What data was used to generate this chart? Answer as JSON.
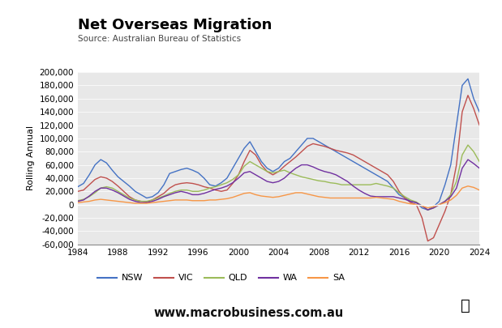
{
  "title": "Net Overseas Migration",
  "source": "Source: Australian Bureau of Statistics",
  "ylabel": "Rolling Annual",
  "website": "www.macrobusiness.com.au",
  "colors": {
    "NSW": "#4472C4",
    "VIC": "#C0504D",
    "QLD": "#9BBB59",
    "WA": "#7030A0",
    "SA": "#F79646"
  },
  "background_color": "#E8E8E8",
  "ylim": [
    -60000,
    200000
  ],
  "yticks": [
    -60000,
    -40000,
    -20000,
    0,
    20000,
    40000,
    60000,
    80000,
    100000,
    120000,
    140000,
    160000,
    180000,
    200000
  ],
  "xlim": [
    1984,
    2024
  ],
  "xticks": [
    1984,
    1988,
    1992,
    1996,
    2000,
    2004,
    2008,
    2012,
    2016,
    2020,
    2024
  ],
  "NSW": [
    27000,
    32000,
    45000,
    60000,
    68000,
    63000,
    52000,
    42000,
    35000,
    28000,
    20000,
    15000,
    10000,
    12000,
    18000,
    30000,
    47000,
    50000,
    53000,
    55000,
    52000,
    48000,
    40000,
    30000,
    28000,
    33000,
    40000,
    55000,
    70000,
    85000,
    95000,
    80000,
    65000,
    55000,
    50000,
    55000,
    65000,
    70000,
    80000,
    90000,
    100000,
    100000,
    95000,
    90000,
    85000,
    80000,
    75000,
    70000,
    65000,
    60000,
    55000,
    50000,
    45000,
    40000,
    35000,
    25000,
    15000,
    10000,
    5000,
    3000,
    -5000,
    -8000,
    -3000,
    5000,
    30000,
    60000,
    120000,
    180000,
    190000,
    160000,
    140000
  ],
  "VIC": [
    20000,
    22000,
    30000,
    38000,
    42000,
    40000,
    35000,
    28000,
    20000,
    12000,
    7000,
    5000,
    4000,
    7000,
    12000,
    17000,
    25000,
    30000,
    32000,
    33000,
    32000,
    30000,
    27000,
    25000,
    22000,
    20000,
    22000,
    32000,
    45000,
    65000,
    82000,
    75000,
    60000,
    50000,
    45000,
    50000,
    58000,
    65000,
    72000,
    80000,
    88000,
    92000,
    90000,
    88000,
    85000,
    82000,
    80000,
    78000,
    75000,
    70000,
    65000,
    60000,
    55000,
    50000,
    45000,
    35000,
    20000,
    10000,
    3000,
    0,
    -20000,
    -55000,
    -50000,
    -30000,
    -10000,
    15000,
    60000,
    140000,
    165000,
    145000,
    120000
  ],
  "QLD": [
    6000,
    8000,
    12000,
    18000,
    25000,
    27000,
    25000,
    20000,
    15000,
    10000,
    7000,
    5000,
    5000,
    7000,
    10000,
    13000,
    17000,
    20000,
    22000,
    22000,
    20000,
    20000,
    22000,
    25000,
    27000,
    30000,
    33000,
    38000,
    45000,
    58000,
    65000,
    60000,
    55000,
    50000,
    48000,
    50000,
    52000,
    48000,
    45000,
    42000,
    40000,
    38000,
    36000,
    35000,
    33000,
    32000,
    30000,
    30000,
    30000,
    30000,
    30000,
    30000,
    32000,
    30000,
    28000,
    25000,
    18000,
    12000,
    7000,
    4000,
    -2000,
    -8000,
    -5000,
    0,
    5000,
    15000,
    35000,
    75000,
    90000,
    80000,
    65000
  ],
  "WA": [
    5000,
    7000,
    13000,
    20000,
    25000,
    25000,
    22000,
    18000,
    13000,
    8000,
    5000,
    3000,
    3000,
    5000,
    8000,
    12000,
    15000,
    18000,
    20000,
    18000,
    15000,
    15000,
    17000,
    20000,
    23000,
    25000,
    28000,
    33000,
    40000,
    48000,
    50000,
    45000,
    40000,
    35000,
    33000,
    35000,
    40000,
    48000,
    55000,
    60000,
    60000,
    57000,
    53000,
    50000,
    48000,
    45000,
    40000,
    35000,
    28000,
    22000,
    17000,
    13000,
    12000,
    12000,
    12000,
    12000,
    10000,
    8000,
    5000,
    3000,
    -2000,
    -8000,
    -5000,
    0,
    5000,
    12000,
    25000,
    55000,
    68000,
    62000,
    55000
  ],
  "SA": [
    3000,
    4000,
    5000,
    7000,
    8000,
    7000,
    6000,
    5000,
    4000,
    3000,
    2000,
    2000,
    2000,
    3000,
    4000,
    5000,
    6000,
    7000,
    7000,
    7000,
    6000,
    6000,
    6000,
    7000,
    7000,
    8000,
    9000,
    11000,
    14000,
    17000,
    18000,
    15000,
    13000,
    12000,
    11000,
    12000,
    14000,
    16000,
    18000,
    18000,
    16000,
    14000,
    12000,
    11000,
    10000,
    10000,
    10000,
    10000,
    10000,
    10000,
    10000,
    10000,
    11000,
    10000,
    9000,
    8000,
    5000,
    3000,
    1000,
    0,
    -2000,
    -5000,
    -3000,
    0,
    3000,
    7000,
    14000,
    25000,
    28000,
    26000,
    22000
  ],
  "years_count": 71,
  "start_year": 1984,
  "end_year": 2024
}
